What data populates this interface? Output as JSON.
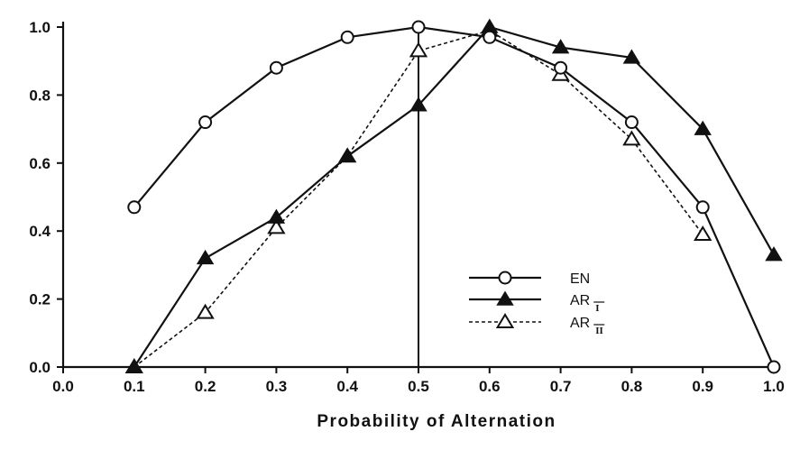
{
  "chart_data": {
    "type": "line",
    "xlabel": "Probability of Alternation",
    "ylabel": "",
    "xlim": [
      0.0,
      1.0
    ],
    "ylim": [
      0.0,
      1.0
    ],
    "x_ticks": [
      "0.0",
      "0.1",
      "0.2",
      "0.3",
      "0.4",
      "0.5",
      "0.6",
      "0.7",
      "0.8",
      "0.9",
      "1.0"
    ],
    "y_ticks": [
      "0.0",
      "0.2",
      "0.4",
      "0.6",
      "0.8",
      "1.0"
    ],
    "grid": false,
    "legend_position": "lower-right",
    "reference_line_x": 0.5,
    "series": [
      {
        "name": "EN",
        "marker": "open-circle",
        "line_style": "solid",
        "x": [
          0.1,
          0.2,
          0.3,
          0.4,
          0.5,
          0.6,
          0.7,
          0.8,
          0.9,
          1.0
        ],
        "y": [
          0.47,
          0.72,
          0.88,
          0.97,
          1.0,
          0.97,
          0.88,
          0.72,
          0.47,
          0.0
        ]
      },
      {
        "name": "AR",
        "subscript": "I",
        "marker": "filled-triangle",
        "line_style": "solid",
        "x": [
          0.1,
          0.2,
          0.3,
          0.4,
          0.5,
          0.6,
          0.7,
          0.8,
          0.9,
          1.0
        ],
        "y": [
          0.0,
          0.32,
          0.44,
          0.62,
          0.77,
          1.0,
          0.94,
          0.91,
          0.7,
          0.33
        ]
      },
      {
        "name": "AR",
        "subscript": "II",
        "marker": "open-triangle",
        "line_style": "dashed",
        "x": [
          0.1,
          0.2,
          0.3,
          0.4,
          0.5,
          0.6,
          0.7,
          0.8,
          0.9
        ],
        "y": [
          0.0,
          0.16,
          0.41,
          0.62,
          0.93,
          0.99,
          0.86,
          0.67,
          0.39
        ]
      }
    ]
  }
}
